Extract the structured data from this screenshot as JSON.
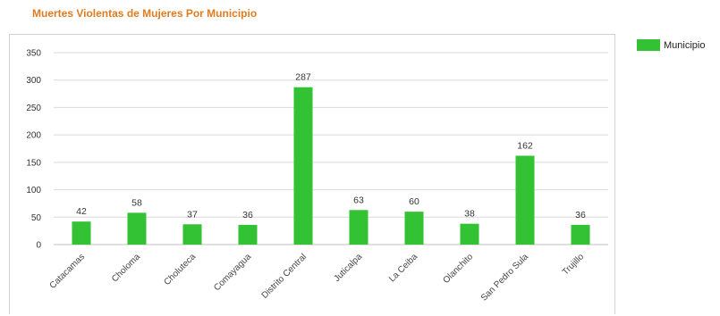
{
  "page": {
    "title": "Muertes Violentas de Mujeres Por Municipio"
  },
  "colors": {
    "title": "#e07b1f",
    "bar": "#33c233",
    "grid": "#d9d9d9",
    "axis": "#bfbfbf"
  },
  "chart_data": {
    "type": "bar",
    "title": "Muertes Violentas de Mujeres Por Municipio",
    "xlabel": "",
    "ylabel": "",
    "categories": [
      "Catacamas",
      "Choloma",
      "Choluteca",
      "Comayagua",
      "Distrito Central",
      "Juticalpa",
      "La Ceiba",
      "Olanchito",
      "San Pedro Sula",
      "Trujillo"
    ],
    "series": [
      {
        "name": "Municipio",
        "values": [
          42,
          58,
          37,
          36,
          287,
          63,
          60,
          38,
          162,
          36
        ]
      }
    ],
    "ylim": [
      0,
      350
    ],
    "yticks": [
      0,
      50,
      100,
      150,
      200,
      250,
      300,
      350
    ],
    "grid": true,
    "data_labels": true,
    "legend": "right"
  }
}
